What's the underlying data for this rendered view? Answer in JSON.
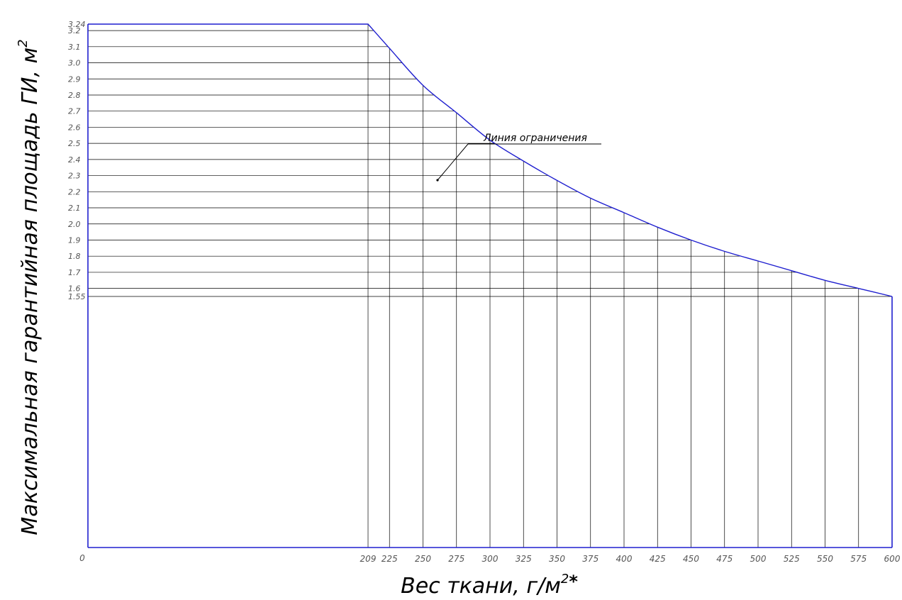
{
  "chart_data": {
    "type": "line",
    "title": "",
    "xlabel": "Вес ткани, г/м",
    "xlabel_sup": "2",
    "xlabel_suffix": "*",
    "ylabel": "Максимальная гарантийная площадь ГИ, м",
    "ylabel_sup": "2",
    "xlim": [
      0,
      600
    ],
    "ylim_labels": [
      "3.24",
      "3.2",
      "3.1",
      "3.0",
      "2.9",
      "2.8",
      "2.7",
      "2.6",
      "2.5",
      "2.4",
      "2.3",
      "2.2",
      "2.1",
      "2.0",
      "1.9",
      "1.8",
      "1.7",
      "1.6",
      "1.55"
    ],
    "y_values": [
      3.24,
      3.2,
      3.1,
      3.0,
      2.9,
      2.8,
      2.7,
      2.6,
      2.5,
      2.4,
      2.3,
      2.2,
      2.1,
      2.0,
      1.9,
      1.8,
      1.7,
      1.6,
      1.55
    ],
    "x_origin_label": "0",
    "x_tick_labels": [
      "209",
      "225",
      "250",
      "275",
      "300",
      "325",
      "350",
      "375",
      "400",
      "425",
      "450",
      "475",
      "500",
      "525",
      "550",
      "575",
      "600"
    ],
    "x_ticks": [
      209,
      225,
      250,
      275,
      300,
      325,
      350,
      375,
      400,
      425,
      450,
      475,
      500,
      525,
      550,
      575,
      600
    ],
    "series": [
      {
        "x": [
          0,
          209,
          225,
          250,
          275,
          300,
          325,
          350,
          375,
          400,
          425,
          450,
          475,
          500,
          525,
          550,
          575,
          600
        ],
        "y": [
          3.24,
          3.24,
          3.09,
          2.86,
          2.69,
          2.52,
          2.39,
          2.27,
          2.16,
          2.07,
          1.98,
          1.9,
          1.83,
          1.77,
          1.71,
          1.65,
          1.6,
          1.55
        ]
      }
    ],
    "annotation": "Линия ограничения",
    "grid": true,
    "line_color": "#1f1fcf"
  }
}
